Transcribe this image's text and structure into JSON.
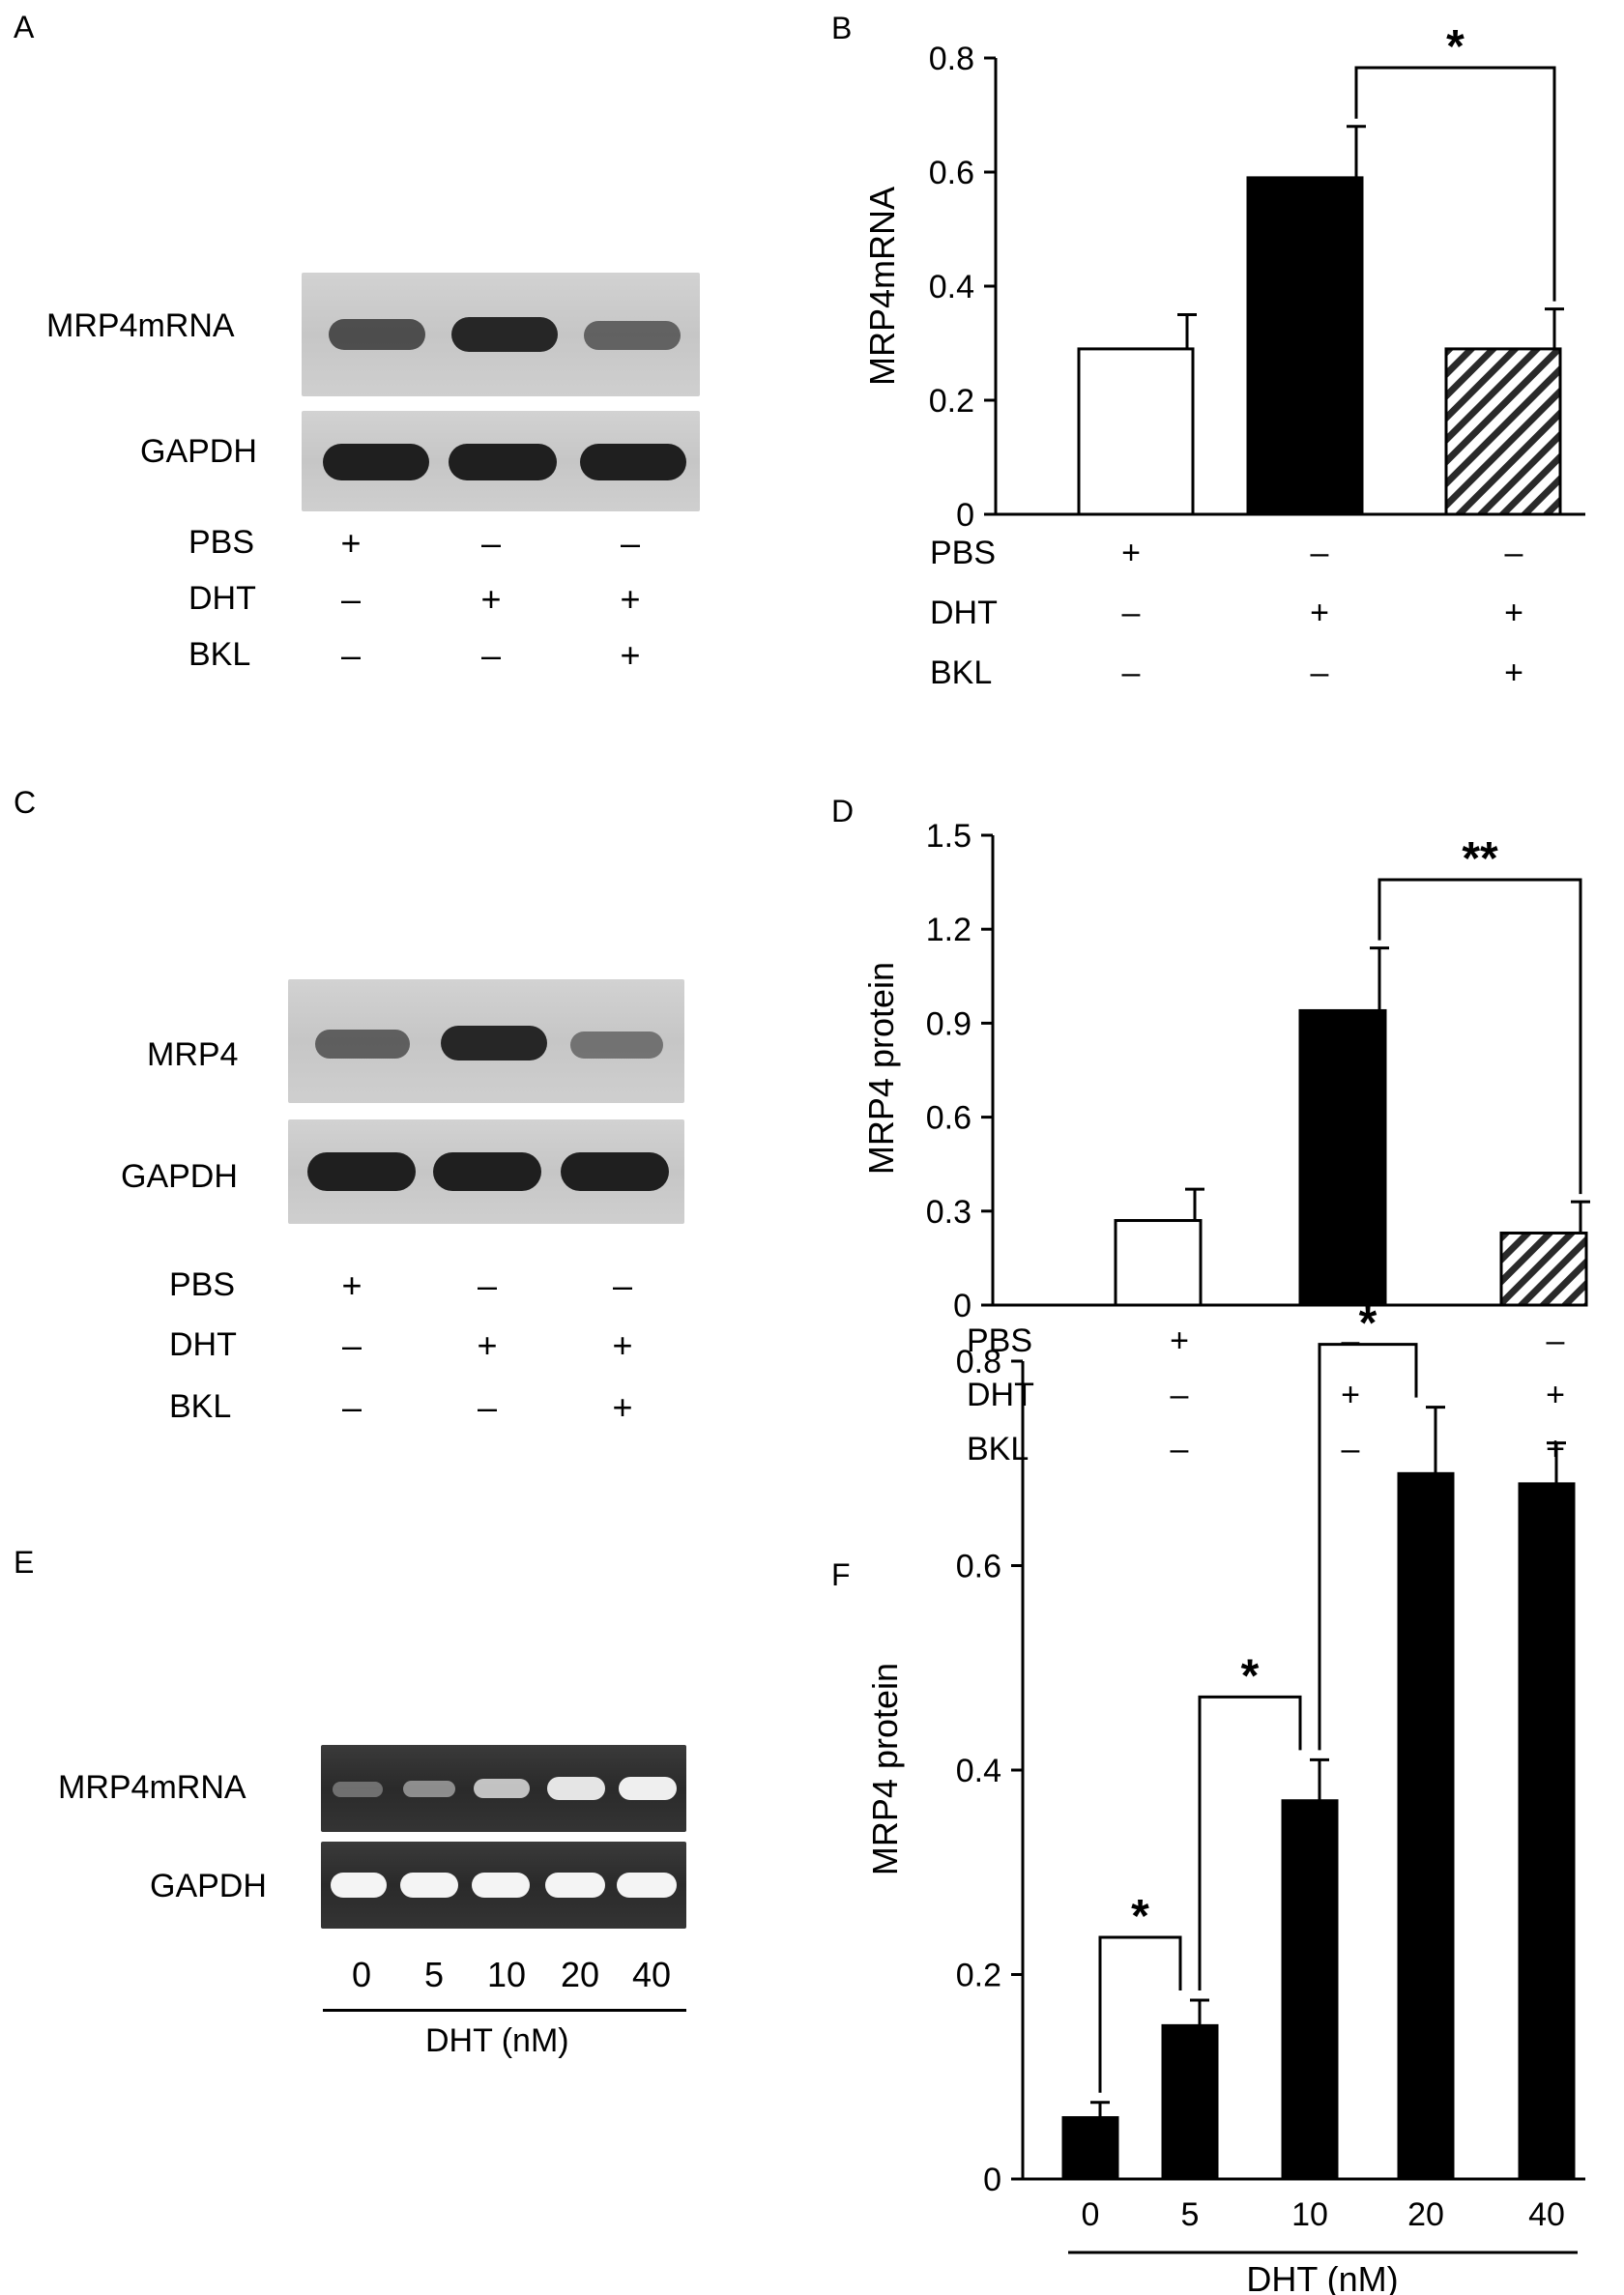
{
  "panels": {
    "a": {
      "label": "A",
      "gel_rows": [
        "MRP4mRNA",
        "GAPDH"
      ],
      "conditions": [
        {
          "name": "PBS",
          "signs": [
            "+",
            "–",
            "–"
          ]
        },
        {
          "name": "DHT",
          "signs": [
            "–",
            "+",
            "+"
          ]
        },
        {
          "name": "BKL",
          "signs": [
            "–",
            "–",
            "+"
          ]
        }
      ],
      "colors": {
        "gel_background": "#c9c9c9",
        "band": "#2a2a2a"
      }
    },
    "c": {
      "label": "C",
      "gel_rows": [
        "MRP4",
        "GAPDH"
      ],
      "conditions": [
        {
          "name": "PBS",
          "signs": [
            "+",
            "–",
            "–"
          ]
        },
        {
          "name": "DHT",
          "signs": [
            "–",
            "+",
            "+"
          ]
        },
        {
          "name": "BKL",
          "signs": [
            "–",
            "–",
            "+"
          ]
        }
      ],
      "colors": {
        "gel_background": "#cbcbcb",
        "band": "#2a2a2a"
      }
    },
    "e": {
      "label": "E",
      "gel_rows": [
        "MRP4mRNA",
        "GAPDH"
      ],
      "lanes": [
        "0",
        "5",
        "10",
        "20",
        "40"
      ],
      "xlabel": "DHT (nM)",
      "colors": {
        "gel_background": "#2f2f2f",
        "band": "#f2f2f2"
      }
    }
  },
  "chart_data": [
    {
      "panel": "B",
      "type": "bar",
      "categories": [
        "1",
        "2",
        "3"
      ],
      "values": [
        0.29,
        0.59,
        0.29
      ],
      "errors": [
        0.06,
        0.09,
        0.07
      ],
      "fills": [
        "white",
        "black",
        "hatched"
      ],
      "ylabel": "MRP4mRNA",
      "ylim": [
        0,
        0.8
      ],
      "yticks": [
        "0",
        "0.2",
        "0.4",
        "0.6",
        "0.8"
      ],
      "conditions": [
        {
          "name": "PBS",
          "signs": [
            "+",
            "–",
            "–"
          ]
        },
        {
          "name": "DHT",
          "signs": [
            "–",
            "+",
            "+"
          ]
        },
        {
          "name": "BKL",
          "signs": [
            "–",
            "–",
            "+"
          ]
        }
      ],
      "significance": [
        {
          "from": 1,
          "to": 2,
          "label": "*"
        }
      ]
    },
    {
      "panel": "D",
      "type": "bar",
      "categories": [
        "1",
        "2",
        "3"
      ],
      "values": [
        0.27,
        0.94,
        0.23
      ],
      "errors": [
        0.1,
        0.2,
        0.1
      ],
      "fills": [
        "white",
        "black",
        "hatched"
      ],
      "ylabel": "MRP4 protein",
      "ylim": [
        0,
        1.5
      ],
      "yticks": [
        "0",
        "0.3",
        "0.6",
        "0.9",
        "1.2",
        "1.5"
      ],
      "conditions": [
        {
          "name": "PBS",
          "signs": [
            "+",
            "–",
            "–"
          ]
        },
        {
          "name": "DHT",
          "signs": [
            "–",
            "+",
            "+"
          ]
        },
        {
          "name": "BKL",
          "signs": [
            "–",
            "–",
            "+"
          ]
        }
      ],
      "significance": [
        {
          "from": 1,
          "to": 2,
          "label": "**"
        }
      ]
    },
    {
      "panel": "F",
      "type": "bar",
      "categories": [
        "0",
        "5",
        "10",
        "20",
        "40"
      ],
      "values": [
        0.06,
        0.15,
        0.37,
        0.69,
        0.68
      ],
      "errors": [
        0.015,
        0.025,
        0.04,
        0.065,
        0.04
      ],
      "fills": [
        "black",
        "black",
        "black",
        "black",
        "black"
      ],
      "ylabel": "MRP4 protein",
      "xlabel": "DHT (nM)",
      "ylim": [
        0,
        0.8
      ],
      "yticks": [
        "0",
        "0.2",
        "0.4",
        "0.6",
        "0.8"
      ],
      "significance": [
        {
          "from": 0,
          "to": 1,
          "label": "*"
        },
        {
          "from": 1,
          "to": 2,
          "label": "*"
        },
        {
          "from": 2,
          "to": 3,
          "label": "*"
        }
      ]
    }
  ]
}
